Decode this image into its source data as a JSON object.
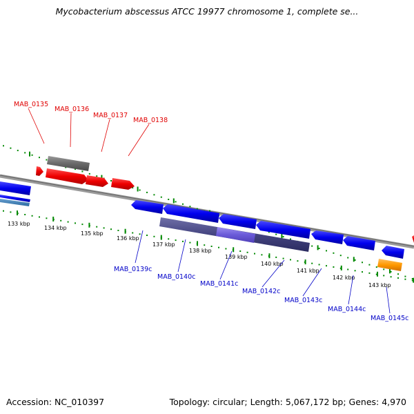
{
  "title": "Mycobacterium abscessus ATCC 19977 chromosome 1, complete se...",
  "footer": {
    "accession": "Accession: NC_010397",
    "summary": "Topology: circular; Length: 5,067,172 bp; Genes: 4,970"
  },
  "colors": {
    "forward_cds": "#ff0000",
    "reverse_cds": "#0000ee",
    "gene": "#606060",
    "gene_reverse": "#303070",
    "orange_feature": "#ff9900",
    "backbone": "#808080",
    "ticks": "#008800"
  },
  "ticks": [
    "133 kbp",
    "134 kbp",
    "135 kbp",
    "136 kbp",
    "137 kbp",
    "138 kbp",
    "139 kbp",
    "140 kbp",
    "141 kbp",
    "142 kbp",
    "143 kbp"
  ],
  "forward_labels": [
    "MAB_0135",
    "MAB_0136",
    "MAB_0137",
    "MAB_0138"
  ],
  "reverse_labels": [
    "MAB_0139c",
    "MAB_0140c",
    "MAB_0141c",
    "MAB_0142c",
    "MAB_0143c",
    "MAB_0144c",
    "MAB_0145c"
  ]
}
